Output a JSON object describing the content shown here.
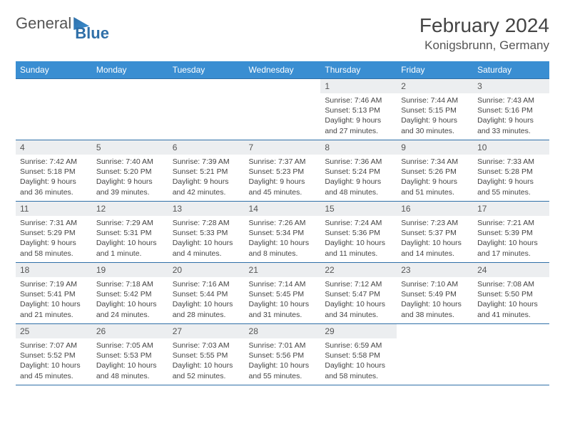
{
  "logo": {
    "part1": "General",
    "part2": "Blue"
  },
  "header": {
    "month": "February 2024",
    "location": "Konigsbrunn, Germany"
  },
  "weekdays": [
    "Sunday",
    "Monday",
    "Tuesday",
    "Wednesday",
    "Thursday",
    "Friday",
    "Saturday"
  ],
  "colors": {
    "accent": "#3a8ed2",
    "rule": "#2f6fa8",
    "daybar": "#eceef0",
    "text": "#444444"
  },
  "weeks": [
    [
      {
        "empty": true
      },
      {
        "empty": true
      },
      {
        "empty": true
      },
      {
        "empty": true
      },
      {
        "day": "1",
        "sunrise": "Sunrise: 7:46 AM",
        "sunset": "Sunset: 5:13 PM",
        "light1": "Daylight: 9 hours",
        "light2": "and 27 minutes."
      },
      {
        "day": "2",
        "sunrise": "Sunrise: 7:44 AM",
        "sunset": "Sunset: 5:15 PM",
        "light1": "Daylight: 9 hours",
        "light2": "and 30 minutes."
      },
      {
        "day": "3",
        "sunrise": "Sunrise: 7:43 AM",
        "sunset": "Sunset: 5:16 PM",
        "light1": "Daylight: 9 hours",
        "light2": "and 33 minutes."
      }
    ],
    [
      {
        "day": "4",
        "sunrise": "Sunrise: 7:42 AM",
        "sunset": "Sunset: 5:18 PM",
        "light1": "Daylight: 9 hours",
        "light2": "and 36 minutes."
      },
      {
        "day": "5",
        "sunrise": "Sunrise: 7:40 AM",
        "sunset": "Sunset: 5:20 PM",
        "light1": "Daylight: 9 hours",
        "light2": "and 39 minutes."
      },
      {
        "day": "6",
        "sunrise": "Sunrise: 7:39 AM",
        "sunset": "Sunset: 5:21 PM",
        "light1": "Daylight: 9 hours",
        "light2": "and 42 minutes."
      },
      {
        "day": "7",
        "sunrise": "Sunrise: 7:37 AM",
        "sunset": "Sunset: 5:23 PM",
        "light1": "Daylight: 9 hours",
        "light2": "and 45 minutes."
      },
      {
        "day": "8",
        "sunrise": "Sunrise: 7:36 AM",
        "sunset": "Sunset: 5:24 PM",
        "light1": "Daylight: 9 hours",
        "light2": "and 48 minutes."
      },
      {
        "day": "9",
        "sunrise": "Sunrise: 7:34 AM",
        "sunset": "Sunset: 5:26 PM",
        "light1": "Daylight: 9 hours",
        "light2": "and 51 minutes."
      },
      {
        "day": "10",
        "sunrise": "Sunrise: 7:33 AM",
        "sunset": "Sunset: 5:28 PM",
        "light1": "Daylight: 9 hours",
        "light2": "and 55 minutes."
      }
    ],
    [
      {
        "day": "11",
        "sunrise": "Sunrise: 7:31 AM",
        "sunset": "Sunset: 5:29 PM",
        "light1": "Daylight: 9 hours",
        "light2": "and 58 minutes."
      },
      {
        "day": "12",
        "sunrise": "Sunrise: 7:29 AM",
        "sunset": "Sunset: 5:31 PM",
        "light1": "Daylight: 10 hours",
        "light2": "and 1 minute."
      },
      {
        "day": "13",
        "sunrise": "Sunrise: 7:28 AM",
        "sunset": "Sunset: 5:33 PM",
        "light1": "Daylight: 10 hours",
        "light2": "and 4 minutes."
      },
      {
        "day": "14",
        "sunrise": "Sunrise: 7:26 AM",
        "sunset": "Sunset: 5:34 PM",
        "light1": "Daylight: 10 hours",
        "light2": "and 8 minutes."
      },
      {
        "day": "15",
        "sunrise": "Sunrise: 7:24 AM",
        "sunset": "Sunset: 5:36 PM",
        "light1": "Daylight: 10 hours",
        "light2": "and 11 minutes."
      },
      {
        "day": "16",
        "sunrise": "Sunrise: 7:23 AM",
        "sunset": "Sunset: 5:37 PM",
        "light1": "Daylight: 10 hours",
        "light2": "and 14 minutes."
      },
      {
        "day": "17",
        "sunrise": "Sunrise: 7:21 AM",
        "sunset": "Sunset: 5:39 PM",
        "light1": "Daylight: 10 hours",
        "light2": "and 17 minutes."
      }
    ],
    [
      {
        "day": "18",
        "sunrise": "Sunrise: 7:19 AM",
        "sunset": "Sunset: 5:41 PM",
        "light1": "Daylight: 10 hours",
        "light2": "and 21 minutes."
      },
      {
        "day": "19",
        "sunrise": "Sunrise: 7:18 AM",
        "sunset": "Sunset: 5:42 PM",
        "light1": "Daylight: 10 hours",
        "light2": "and 24 minutes."
      },
      {
        "day": "20",
        "sunrise": "Sunrise: 7:16 AM",
        "sunset": "Sunset: 5:44 PM",
        "light1": "Daylight: 10 hours",
        "light2": "and 28 minutes."
      },
      {
        "day": "21",
        "sunrise": "Sunrise: 7:14 AM",
        "sunset": "Sunset: 5:45 PM",
        "light1": "Daylight: 10 hours",
        "light2": "and 31 minutes."
      },
      {
        "day": "22",
        "sunrise": "Sunrise: 7:12 AM",
        "sunset": "Sunset: 5:47 PM",
        "light1": "Daylight: 10 hours",
        "light2": "and 34 minutes."
      },
      {
        "day": "23",
        "sunrise": "Sunrise: 7:10 AM",
        "sunset": "Sunset: 5:49 PM",
        "light1": "Daylight: 10 hours",
        "light2": "and 38 minutes."
      },
      {
        "day": "24",
        "sunrise": "Sunrise: 7:08 AM",
        "sunset": "Sunset: 5:50 PM",
        "light1": "Daylight: 10 hours",
        "light2": "and 41 minutes."
      }
    ],
    [
      {
        "day": "25",
        "sunrise": "Sunrise: 7:07 AM",
        "sunset": "Sunset: 5:52 PM",
        "light1": "Daylight: 10 hours",
        "light2": "and 45 minutes."
      },
      {
        "day": "26",
        "sunrise": "Sunrise: 7:05 AM",
        "sunset": "Sunset: 5:53 PM",
        "light1": "Daylight: 10 hours",
        "light2": "and 48 minutes."
      },
      {
        "day": "27",
        "sunrise": "Sunrise: 7:03 AM",
        "sunset": "Sunset: 5:55 PM",
        "light1": "Daylight: 10 hours",
        "light2": "and 52 minutes."
      },
      {
        "day": "28",
        "sunrise": "Sunrise: 7:01 AM",
        "sunset": "Sunset: 5:56 PM",
        "light1": "Daylight: 10 hours",
        "light2": "and 55 minutes."
      },
      {
        "day": "29",
        "sunrise": "Sunrise: 6:59 AM",
        "sunset": "Sunset: 5:58 PM",
        "light1": "Daylight: 10 hours",
        "light2": "and 58 minutes."
      },
      {
        "empty": true
      },
      {
        "empty": true
      }
    ]
  ]
}
